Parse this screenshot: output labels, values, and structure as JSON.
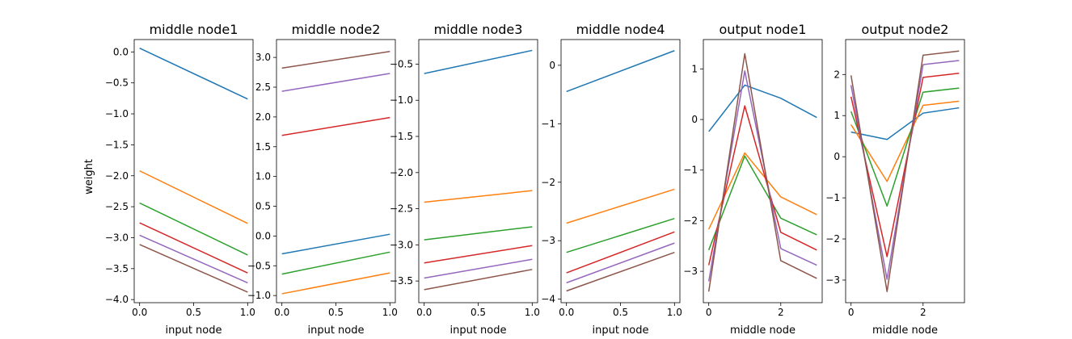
{
  "figure": {
    "ylabel": "weight"
  },
  "colors": [
    "#1f77b4",
    "#ff7f0e",
    "#2ca02c",
    "#d62728",
    "#9467bd",
    "#8c564b"
  ],
  "chart_data": [
    {
      "type": "line",
      "title": "middle node1",
      "xlabel": "input node",
      "ylabel": "weight",
      "x": [
        0,
        1
      ],
      "xlim": [
        -0.05,
        1.05
      ],
      "ylim": [
        -4.05,
        0.2
      ],
      "xticks": [
        0,
        0.5,
        1
      ],
      "xtick_labels": [
        "0.0",
        "0.5",
        "1.0"
      ],
      "yticks": [
        0,
        -0.5,
        -1,
        -1.5,
        -2,
        -2.5,
        -3,
        -3.5,
        -4
      ],
      "ytick_labels": [
        "0.0",
        "−0.5",
        "−1.0",
        "−1.5",
        "−2.0",
        "−2.5",
        "−3.0",
        "−3.5",
        "−4.0"
      ],
      "series": [
        {
          "values": [
            0.06,
            -0.76
          ]
        },
        {
          "values": [
            -1.92,
            -2.77
          ]
        },
        {
          "values": [
            -2.44,
            -3.28
          ]
        },
        {
          "values": [
            -2.76,
            -3.57
          ]
        },
        {
          "values": [
            -2.96,
            -3.73
          ]
        },
        {
          "values": [
            -3.11,
            -3.88
          ]
        }
      ]
    },
    {
      "type": "line",
      "title": "middle node2",
      "xlabel": "input node",
      "x": [
        0,
        1
      ],
      "xlim": [
        -0.05,
        1.05
      ],
      "ylim": [
        -1.12,
        3.3
      ],
      "xticks": [
        0,
        0.5,
        1
      ],
      "xtick_labels": [
        "0.0",
        "0.5",
        "1.0"
      ],
      "yticks": [
        3,
        2.5,
        2,
        1.5,
        1,
        0.5,
        0,
        -0.5,
        -1
      ],
      "ytick_labels": [
        "3.0",
        "2.5",
        "2.0",
        "1.5",
        "1.0",
        "0.5",
        "0.0",
        "−0.5",
        "−1.0"
      ],
      "series": [
        {
          "values": [
            -0.3,
            0.03
          ]
        },
        {
          "values": [
            -0.97,
            -0.62
          ]
        },
        {
          "values": [
            -0.64,
            -0.27
          ]
        },
        {
          "values": [
            1.69,
            1.99
          ]
        },
        {
          "values": [
            2.43,
            2.73
          ]
        },
        {
          "values": [
            2.82,
            3.1
          ]
        }
      ]
    },
    {
      "type": "line",
      "title": "middle node3",
      "xlabel": "input node",
      "x": [
        0,
        1
      ],
      "xlim": [
        -0.05,
        1.05
      ],
      "ylim": [
        -3.8,
        -0.16
      ],
      "xticks": [
        0,
        0.5,
        1
      ],
      "xtick_labels": [
        "0.0",
        "0.5",
        "1.0"
      ],
      "yticks": [
        -0.5,
        -1,
        -1.5,
        -2,
        -2.5,
        -3,
        -3.5
      ],
      "ytick_labels": [
        "−0.5",
        "−1.0",
        "−1.5",
        "−2.0",
        "−2.5",
        "−3.0",
        "−3.5"
      ],
      "series": [
        {
          "values": [
            -0.63,
            -0.31
          ]
        },
        {
          "values": [
            -2.41,
            -2.25
          ]
        },
        {
          "values": [
            -2.93,
            -2.75
          ]
        },
        {
          "values": [
            -3.25,
            -3.01
          ]
        },
        {
          "values": [
            -3.46,
            -3.2
          ]
        },
        {
          "values": [
            -3.62,
            -3.34
          ]
        }
      ]
    },
    {
      "type": "line",
      "title": "middle node4",
      "xlabel": "input node",
      "x": [
        0,
        1
      ],
      "xlim": [
        -0.05,
        1.05
      ],
      "ylim": [
        -4.06,
        0.44
      ],
      "xticks": [
        0,
        0.5,
        1
      ],
      "xtick_labels": [
        "0.0",
        "0.5",
        "1.0"
      ],
      "yticks": [
        0,
        -1,
        -2,
        -3,
        -4
      ],
      "ytick_labels": [
        "0",
        "−1",
        "−2",
        "−3",
        "−4"
      ],
      "series": [
        {
          "values": [
            -0.45,
            0.25
          ]
        },
        {
          "values": [
            -2.7,
            -2.12
          ]
        },
        {
          "values": [
            -3.2,
            -2.62
          ]
        },
        {
          "values": [
            -3.55,
            -2.85
          ]
        },
        {
          "values": [
            -3.72,
            -3.04
          ]
        },
        {
          "values": [
            -3.86,
            -3.2
          ]
        }
      ]
    },
    {
      "type": "line",
      "title": "output node1",
      "xlabel": "middle node",
      "x": [
        0,
        1,
        2,
        3
      ],
      "xlim": [
        -0.15,
        3.15
      ],
      "ylim": [
        -3.62,
        1.58
      ],
      "xticks": [
        0,
        2
      ],
      "xtick_labels": [
        "0",
        "2"
      ],
      "yticks": [
        1,
        0,
        -1,
        -2,
        -3
      ],
      "ytick_labels": [
        "1",
        "0",
        "−1",
        "−2",
        "−3"
      ],
      "series": [
        {
          "values": [
            -0.24,
            0.68,
            0.42,
            0.04
          ]
        },
        {
          "values": [
            -2.17,
            -0.66,
            -1.53,
            -1.88
          ]
        },
        {
          "values": [
            -2.58,
            -0.72,
            -1.95,
            -2.28
          ]
        },
        {
          "values": [
            -2.88,
            0.27,
            -2.23,
            -2.58
          ]
        },
        {
          "values": [
            -3.2,
            0.96,
            -2.55,
            -2.88
          ]
        },
        {
          "values": [
            -3.4,
            1.3,
            -2.79,
            -3.14
          ]
        }
      ]
    },
    {
      "type": "line",
      "title": "output node2",
      "xlabel": "middle node",
      "x": [
        0,
        1,
        2,
        3
      ],
      "xlim": [
        -0.15,
        3.15
      ],
      "ylim": [
        -3.55,
        2.85
      ],
      "xticks": [
        0,
        2
      ],
      "xtick_labels": [
        "0",
        "2"
      ],
      "yticks": [
        2,
        1,
        0,
        -1,
        -2,
        -3
      ],
      "ytick_labels": [
        "2",
        "1",
        "0",
        "−1",
        "−2",
        "−3"
      ],
      "series": [
        {
          "values": [
            0.6,
            0.42,
            1.06,
            1.19
          ]
        },
        {
          "values": [
            0.78,
            -0.6,
            1.25,
            1.35
          ]
        },
        {
          "values": [
            1.1,
            -1.2,
            1.57,
            1.67
          ]
        },
        {
          "values": [
            1.46,
            -2.43,
            1.93,
            2.03
          ]
        },
        {
          "values": [
            1.74,
            -2.98,
            2.24,
            2.34
          ]
        },
        {
          "values": [
            1.98,
            -3.28,
            2.47,
            2.57
          ]
        }
      ]
    }
  ]
}
